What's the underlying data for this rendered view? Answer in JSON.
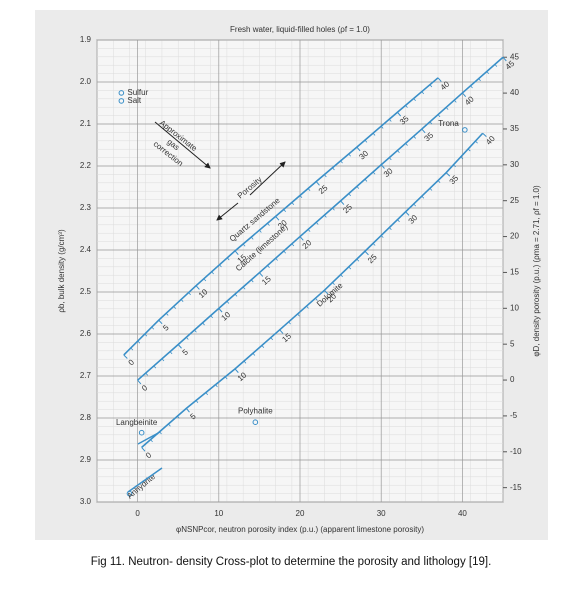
{
  "chart_data": {
    "type": "crossplot",
    "title": "Fresh water, liquid-filled holes (ρf = 1.0)",
    "x_label": "φNSNPcor, neutron porosity index (p.u.) (apparent limestone porosity)",
    "y_label": "ρb, bulk density (g/cm³)",
    "y2_label": "φD, density porosity (p.u.) (ρma = 2.71, ρf = 1.0)",
    "xlim": [
      -5,
      45
    ],
    "xticks": [
      0,
      10,
      20,
      30,
      40
    ],
    "ylim": [
      1.9,
      3.0
    ],
    "yticks": [
      1.9,
      {
        "value": 2,
        "label": "2.0"
      },
      2.1,
      2.2,
      2.3,
      2.4,
      2.5,
      2.6,
      2.7,
      2.8,
      2.9,
      {
        "value": 3,
        "label": "3.0"
      }
    ],
    "y2lim": [
      47.4,
      -17.0
    ],
    "y2ticks": [
      45,
      40,
      35,
      30,
      25,
      20,
      15,
      10,
      5,
      0,
      -5,
      -10,
      -15
    ],
    "grid": true,
    "series": [
      {
        "name": "Quartz sandstone",
        "color": "#3a8fc8",
        "porosity": [
          0,
          5,
          10,
          15,
          20,
          25,
          30,
          35,
          40
        ],
        "x": [
          -1.7,
          2.6,
          7.2,
          12,
          17,
          22,
          27,
          32,
          37
        ],
        "y": [
          2.65,
          2.567,
          2.485,
          2.402,
          2.32,
          2.237,
          2.155,
          2.072,
          1.99
        ]
      },
      {
        "name": "Calcite (limestone)",
        "color": "#3a8fc8",
        "porosity": [
          0,
          5,
          10,
          15,
          20,
          25,
          30,
          35,
          40,
          45
        ],
        "x": [
          0,
          5,
          10,
          15,
          20,
          25,
          30,
          35,
          40,
          45
        ],
        "y": [
          2.71,
          2.625,
          2.539,
          2.454,
          2.368,
          2.283,
          2.197,
          2.112,
          2.026,
          1.941
        ]
      },
      {
        "name": "Dolomite",
        "color": "#3a8fc8",
        "porosity": [
          0,
          5,
          10,
          15,
          20,
          25,
          30,
          35,
          40
        ],
        "x": [
          0.5,
          6,
          12,
          17.5,
          23,
          28,
          33,
          38,
          42.5
        ],
        "y": [
          2.87,
          2.777,
          2.683,
          2.59,
          2.496,
          2.403,
          2.309,
          2.216,
          2.122
        ]
      }
    ],
    "minerals": [
      {
        "name": "Sulfur",
        "x": -2,
        "y": 2.026
      },
      {
        "name": "Salt",
        "x": -2,
        "y": 2.045
      },
      {
        "name": "Trona",
        "x": 40.3,
        "y": 2.114
      },
      {
        "name": "Polyhalite",
        "x": 14.5,
        "y": 2.81
      },
      {
        "name": "Langbeinite",
        "x": 0.5,
        "y": 2.835
      },
      {
        "name": "Anhydrite",
        "x": -1,
        "y": 2.98
      }
    ],
    "annotations": {
      "gas_correction": [
        "Approximate",
        "gas",
        "correction"
      ],
      "porosity": "Porosity"
    },
    "caption": "Fig 11. Neutron- density Cross-plot to determine the porosity and lithology [19]."
  }
}
